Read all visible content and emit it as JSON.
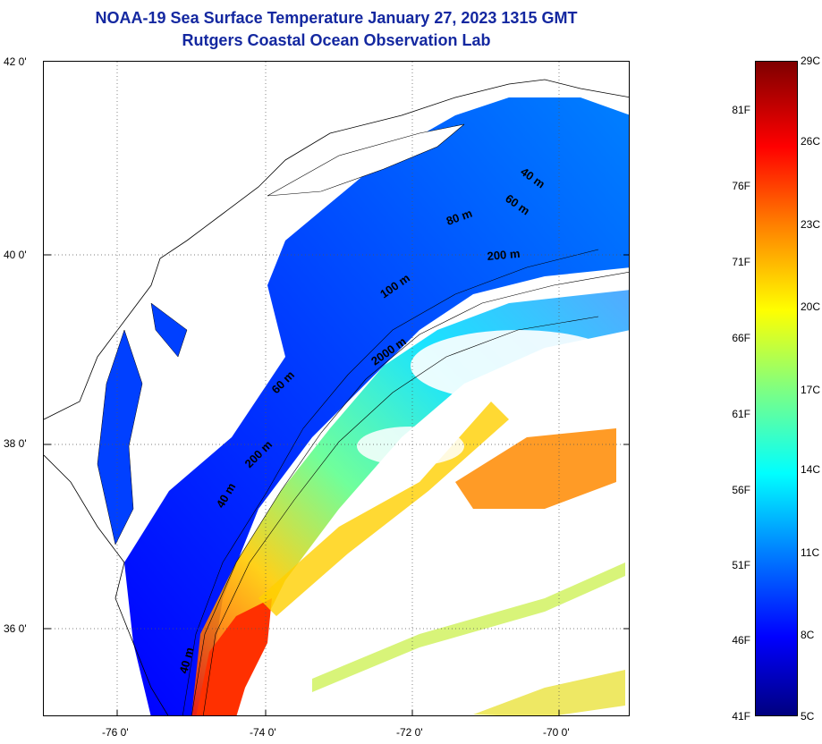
{
  "title_line1": "NOAA-19 Sea Surface Temperature January 27, 2023 1315 GMT",
  "title_line2": "Rutgers Coastal Ocean Observation Lab",
  "lat_labels": [
    "42 0'",
    "40 0'",
    "38 0'",
    "36 0'"
  ],
  "lon_labels": [
    "-76 0'",
    "-74 0'",
    "-72 0'",
    "-70 0'"
  ],
  "depth_labels": [
    "40 m",
    "60 m",
    "80 m",
    "200 m",
    "100 m",
    "2000 m",
    "60 m",
    "200 m",
    "40 m",
    "40 m"
  ],
  "colorbar": {
    "fahrenheit": [
      "81F",
      "76F",
      "71F",
      "66F",
      "61F",
      "56F",
      "51F",
      "46F",
      "41F"
    ],
    "celsius": [
      "29C",
      "26C",
      "23C",
      "20C",
      "17C",
      "14C",
      "11C",
      "8C",
      "5C"
    ],
    "colors": [
      "#7f0000",
      "#ff0000",
      "#ff8000",
      "#ffff00",
      "#80ff80",
      "#00ffff",
      "#0080ff",
      "#0000ff",
      "#00007f"
    ]
  }
}
